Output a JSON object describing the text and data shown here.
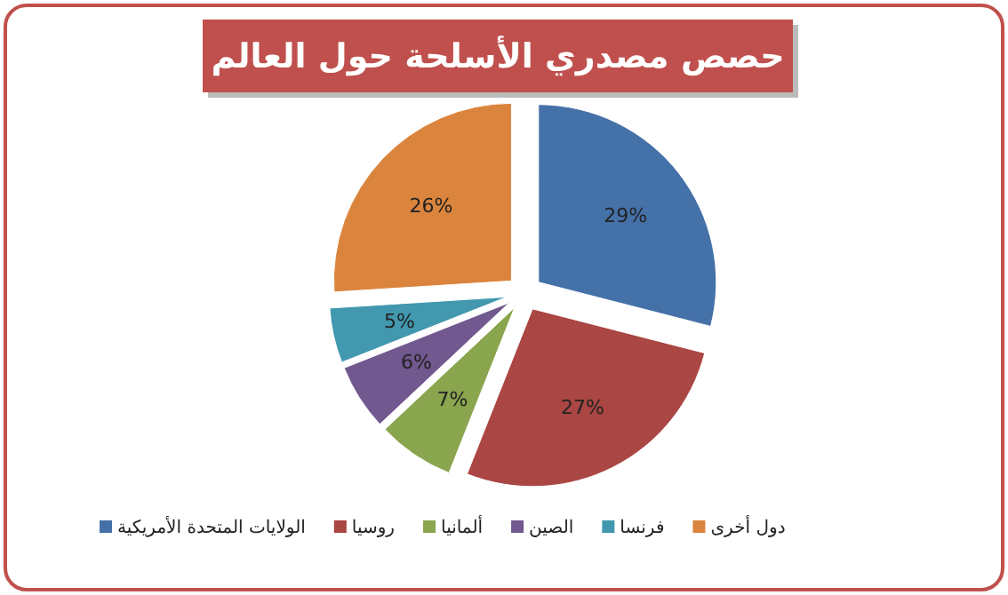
{
  "chart_data": {
    "type": "pie",
    "title": "حصص مصدري الأسلحة حول العالم",
    "categories": [
      "الولايات المتحدة الأمريكية",
      "روسيا",
      "ألمانيا",
      "الصين",
      "فرنسا",
      "دول أخرى"
    ],
    "values": [
      29,
      27,
      7,
      6,
      5,
      26
    ],
    "value_labels": [
      "29%",
      "27%",
      "7%",
      "6%",
      "5%",
      "26%"
    ],
    "colors": [
      "#4571a9",
      "#aa4643",
      "#89a54e",
      "#71588f",
      "#4198af",
      "#db843d"
    ],
    "legend": "bottom"
  }
}
